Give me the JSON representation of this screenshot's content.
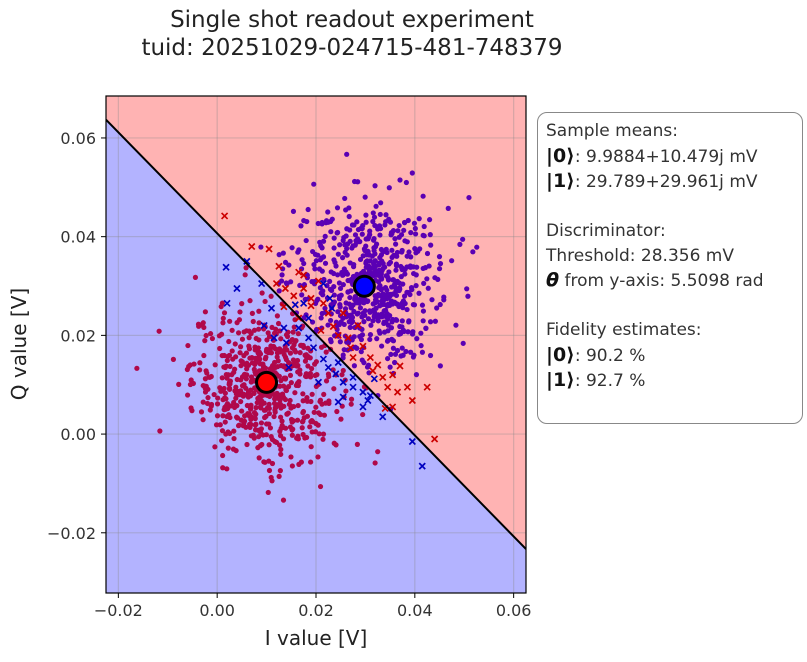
{
  "title": {
    "line1": "Single shot readout experiment",
    "line2": "tuid: 20251029-024715-481-748379"
  },
  "info": {
    "means_header": "Sample means:",
    "mean0_ket": "|0⟩",
    "mean0_value": ": 9.9884+10.479j mV",
    "mean1_ket": "|1⟩",
    "mean1_value": ": 29.789+29.961j mV",
    "disc_header": "Discriminator:",
    "threshold": "Threshold: 28.356 mV",
    "theta_symbol": "θ",
    "theta_text": " from y-axis: 5.5098 rad",
    "fid_header": "Fidelity estimates:",
    "fid0_ket": "|0⟩",
    "fid0_value": ": 90.2 %",
    "fid1_ket": "|1⟩",
    "fid1_value": ": 92.7 %"
  },
  "colors": {
    "region0": "#b3b3ff",
    "region1": "#ffb3b3",
    "state0_points": "#b0084a",
    "state1_points": "#5a00b4",
    "misclassified_as_1": "#cc0000",
    "misclassified_as_0": "#0000c0",
    "mean0_marker": "#ff0000",
    "mean1_marker": "#0000ff",
    "boundary": "#000000"
  },
  "chart_data": {
    "type": "scatter",
    "xlabel": "I value [V]",
    "ylabel": "Q value [V]",
    "xlim": [
      -0.0225,
      0.0625
    ],
    "ylim": [
      -0.0322,
      0.0685
    ],
    "xticks": [
      -0.02,
      0.0,
      0.02,
      0.04,
      0.06
    ],
    "xtick_labels": [
      "−0.02",
      "0.00",
      "0.02",
      "0.04",
      "0.06"
    ],
    "yticks": [
      -0.02,
      0.0,
      0.02,
      0.04,
      0.06
    ],
    "ytick_labels": [
      "−0.02",
      "0.00",
      "0.02",
      "0.04",
      "0.06"
    ],
    "grid": true,
    "series": [
      {
        "state": 0,
        "center": [
          0.0099884,
          0.010479
        ],
        "spread": [
          0.0075,
          0.0078
        ],
        "count": 620,
        "marker": "dot"
      },
      {
        "state": 1,
        "center": [
          0.029789,
          0.029961
        ],
        "spread": [
          0.0078,
          0.0085
        ],
        "count": 640,
        "marker": "dot"
      }
    ],
    "misclassified": {
      "state0_as_1": [
        [
          0.0015,
          0.0442
        ],
        [
          0.007,
          0.038
        ],
        [
          0.0105,
          0.0375
        ],
        [
          0.0125,
          0.034
        ],
        [
          0.0165,
          0.0328
        ],
        [
          0.0175,
          0.0322
        ],
        [
          0.012,
          0.0305
        ],
        [
          0.0155,
          0.028
        ],
        [
          0.0135,
          0.0258
        ],
        [
          0.019,
          0.026
        ],
        [
          0.0225,
          0.0245
        ],
        [
          0.021,
          0.021
        ],
        [
          0.0245,
          0.02
        ],
        [
          0.027,
          0.0175
        ],
        [
          0.0295,
          0.0178
        ],
        [
          0.031,
          0.0155
        ],
        [
          0.0325,
          0.014
        ],
        [
          0.0335,
          0.0115
        ],
        [
          0.0355,
          0.012
        ],
        [
          0.037,
          0.0138
        ],
        [
          0.0385,
          0.0095
        ],
        [
          0.0365,
          0.0085
        ],
        [
          0.0355,
          0.0055
        ],
        [
          0.0425,
          0.0095
        ],
        [
          0.044,
          -0.001
        ],
        [
          0.0345,
          0.0095
        ],
        [
          0.0285,
          0.022
        ],
        [
          0.0175,
          0.0295
        ],
        [
          0.0205,
          0.031
        ],
        [
          0.019,
          0.0275
        ],
        [
          0.0255,
          0.0245
        ],
        [
          0.0215,
          0.0265
        ],
        [
          0.0235,
          0.0218
        ],
        [
          0.0265,
          0.0195
        ],
        [
          0.0315,
          0.0128
        ],
        [
          0.0275,
          0.0155
        ],
        [
          0.0395,
          0.0068
        ],
        [
          0.034,
          0.0052
        ],
        [
          0.0165,
          0.0235
        ],
        [
          0.0138,
          0.0295
        ]
      ],
      "state1_as_0": [
        [
          0.0018,
          0.0338
        ],
        [
          0.006,
          0.035
        ],
        [
          0.009,
          0.0305
        ],
        [
          0.004,
          0.0295
        ],
        [
          0.002,
          0.0265
        ],
        [
          0.011,
          0.0255
        ],
        [
          0.0135,
          0.0215
        ],
        [
          0.0095,
          0.022
        ],
        [
          0.0165,
          0.0215
        ],
        [
          0.0185,
          0.0195
        ],
        [
          0.014,
          0.0185
        ],
        [
          0.0195,
          0.0175
        ],
        [
          0.0215,
          0.0152
        ],
        [
          0.0225,
          0.0135
        ],
        [
          0.024,
          0.0122
        ],
        [
          0.0255,
          0.0105
        ],
        [
          0.0275,
          0.0095
        ],
        [
          0.0295,
          0.0085
        ],
        [
          0.031,
          0.0078
        ],
        [
          0.0255,
          0.0075
        ],
        [
          0.0295,
          0.0055
        ],
        [
          0.0245,
          0.0065
        ],
        [
          0.0335,
          0.0035
        ],
        [
          0.0395,
          -0.0015
        ],
        [
          0.0415,
          -0.0065
        ],
        [
          0.0215,
          0.0305
        ],
        [
          0.0175,
          0.0265
        ],
        [
          0.0228,
          0.0275
        ],
        [
          0.0232,
          0.0255
        ],
        [
          0.0185,
          0.0235
        ],
        [
          0.0158,
          0.0262
        ],
        [
          0.0115,
          0.0195
        ],
        [
          0.0145,
          0.0135
        ],
        [
          0.0205,
          0.0105
        ],
        [
          0.0245,
          0.0145
        ],
        [
          0.0275,
          0.0115
        ],
        [
          0.0305,
          0.0068
        ],
        [
          0.0318,
          0.0112
        ]
      ]
    },
    "means": {
      "state0": [
        0.0099884,
        0.010479
      ],
      "state1": [
        0.029789,
        0.029961
      ]
    },
    "boundary_line": {
      "x": [
        -0.0225,
        0.0625
      ],
      "y": [
        0.0637,
        -0.0233
      ]
    }
  }
}
